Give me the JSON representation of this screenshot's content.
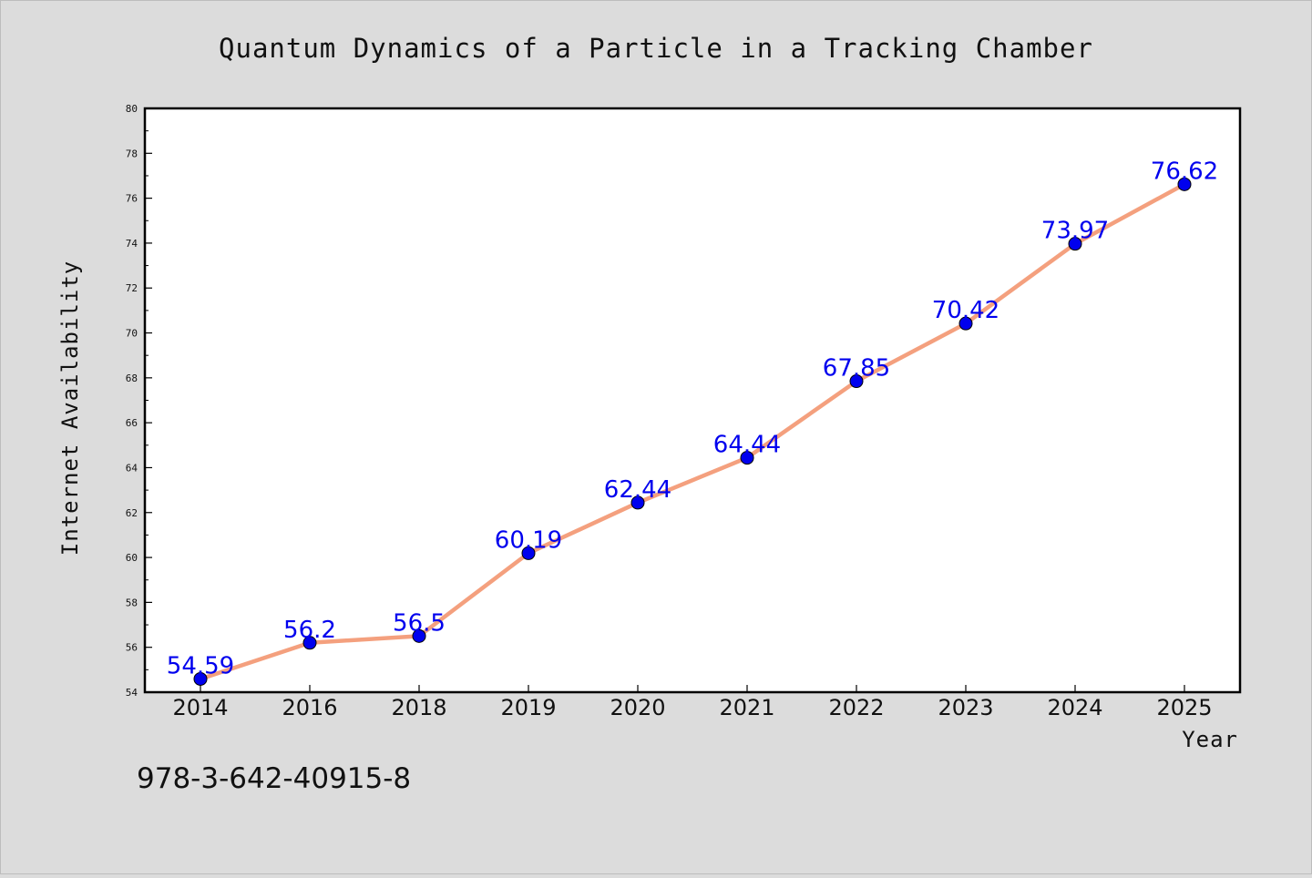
{
  "chart_data": {
    "type": "line",
    "title": "Quantum Dynamics of a Particle in a Tracking Chamber",
    "xlabel": "Year",
    "ylabel": "Internet Availability",
    "categories": [
      "2014",
      "2016",
      "2018",
      "2019",
      "2020",
      "2021",
      "2022",
      "2023",
      "2024",
      "2025"
    ],
    "series": [
      {
        "values": [
          54.59,
          56.2,
          56.5,
          60.19,
          62.44,
          64.44,
          67.85,
          70.42,
          73.97,
          76.62
        ],
        "labels": [
          "54.59",
          "56.2",
          "56.5",
          "60.19",
          "62.44",
          "64.44",
          "67.85",
          "70.42",
          "73.97",
          "76.62"
        ]
      }
    ],
    "ylim": [
      54,
      80
    ],
    "yticks": [
      54,
      56,
      58,
      60,
      62,
      64,
      66,
      68,
      70,
      72,
      74,
      76,
      78,
      80
    ],
    "grid": false,
    "legend": "none",
    "colors": {
      "line": "#f4a07e",
      "marker": "#0000ee",
      "label": "#0000ee",
      "background": "#dcdcdc",
      "plot_bg": "#ffffff"
    }
  },
  "footnote": "978-3-642-40915-8"
}
